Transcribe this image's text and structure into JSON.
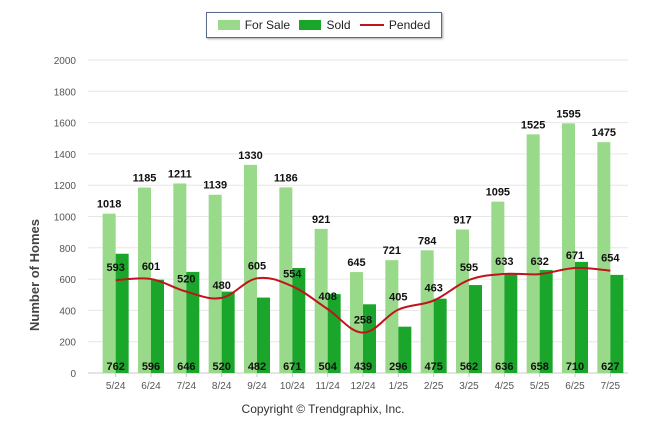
{
  "chart_data": {
    "type": "bar",
    "ylabel": "Number of Homes",
    "ylim": [
      0,
      2000
    ],
    "yticks": [
      0,
      200,
      400,
      600,
      800,
      1000,
      1200,
      1400,
      1600,
      1800,
      2000
    ],
    "categories": [
      "5/24",
      "6/24",
      "7/24",
      "8/24",
      "9/24",
      "10/24",
      "11/24",
      "12/24",
      "1/25",
      "2/25",
      "3/25",
      "4/25",
      "5/25",
      "6/25",
      "7/25"
    ],
    "series": [
      {
        "name": "For Sale",
        "type": "bar",
        "color": "#99d98a",
        "values": [
          1018,
          1185,
          1211,
          1139,
          1330,
          1186,
          921,
          645,
          721,
          784,
          917,
          1095,
          1525,
          1595,
          1475
        ]
      },
      {
        "name": "Sold",
        "type": "bar",
        "color": "#1aa62b",
        "values": [
          762,
          596,
          646,
          520,
          482,
          671,
          504,
          439,
          296,
          475,
          562,
          636,
          658,
          710,
          627
        ]
      },
      {
        "name": "Pended",
        "type": "line",
        "color": "#c0141c",
        "values": [
          593,
          601,
          520,
          480,
          605,
          554,
          408,
          258,
          405,
          463,
          595,
          633,
          632,
          671,
          654
        ]
      }
    ],
    "grid": true,
    "legend_position": "top-center"
  },
  "legend": {
    "for_sale": "For Sale",
    "sold": "Sold",
    "pended": "Pended"
  },
  "copyright": "Copyright © Trendgraphix, Inc."
}
